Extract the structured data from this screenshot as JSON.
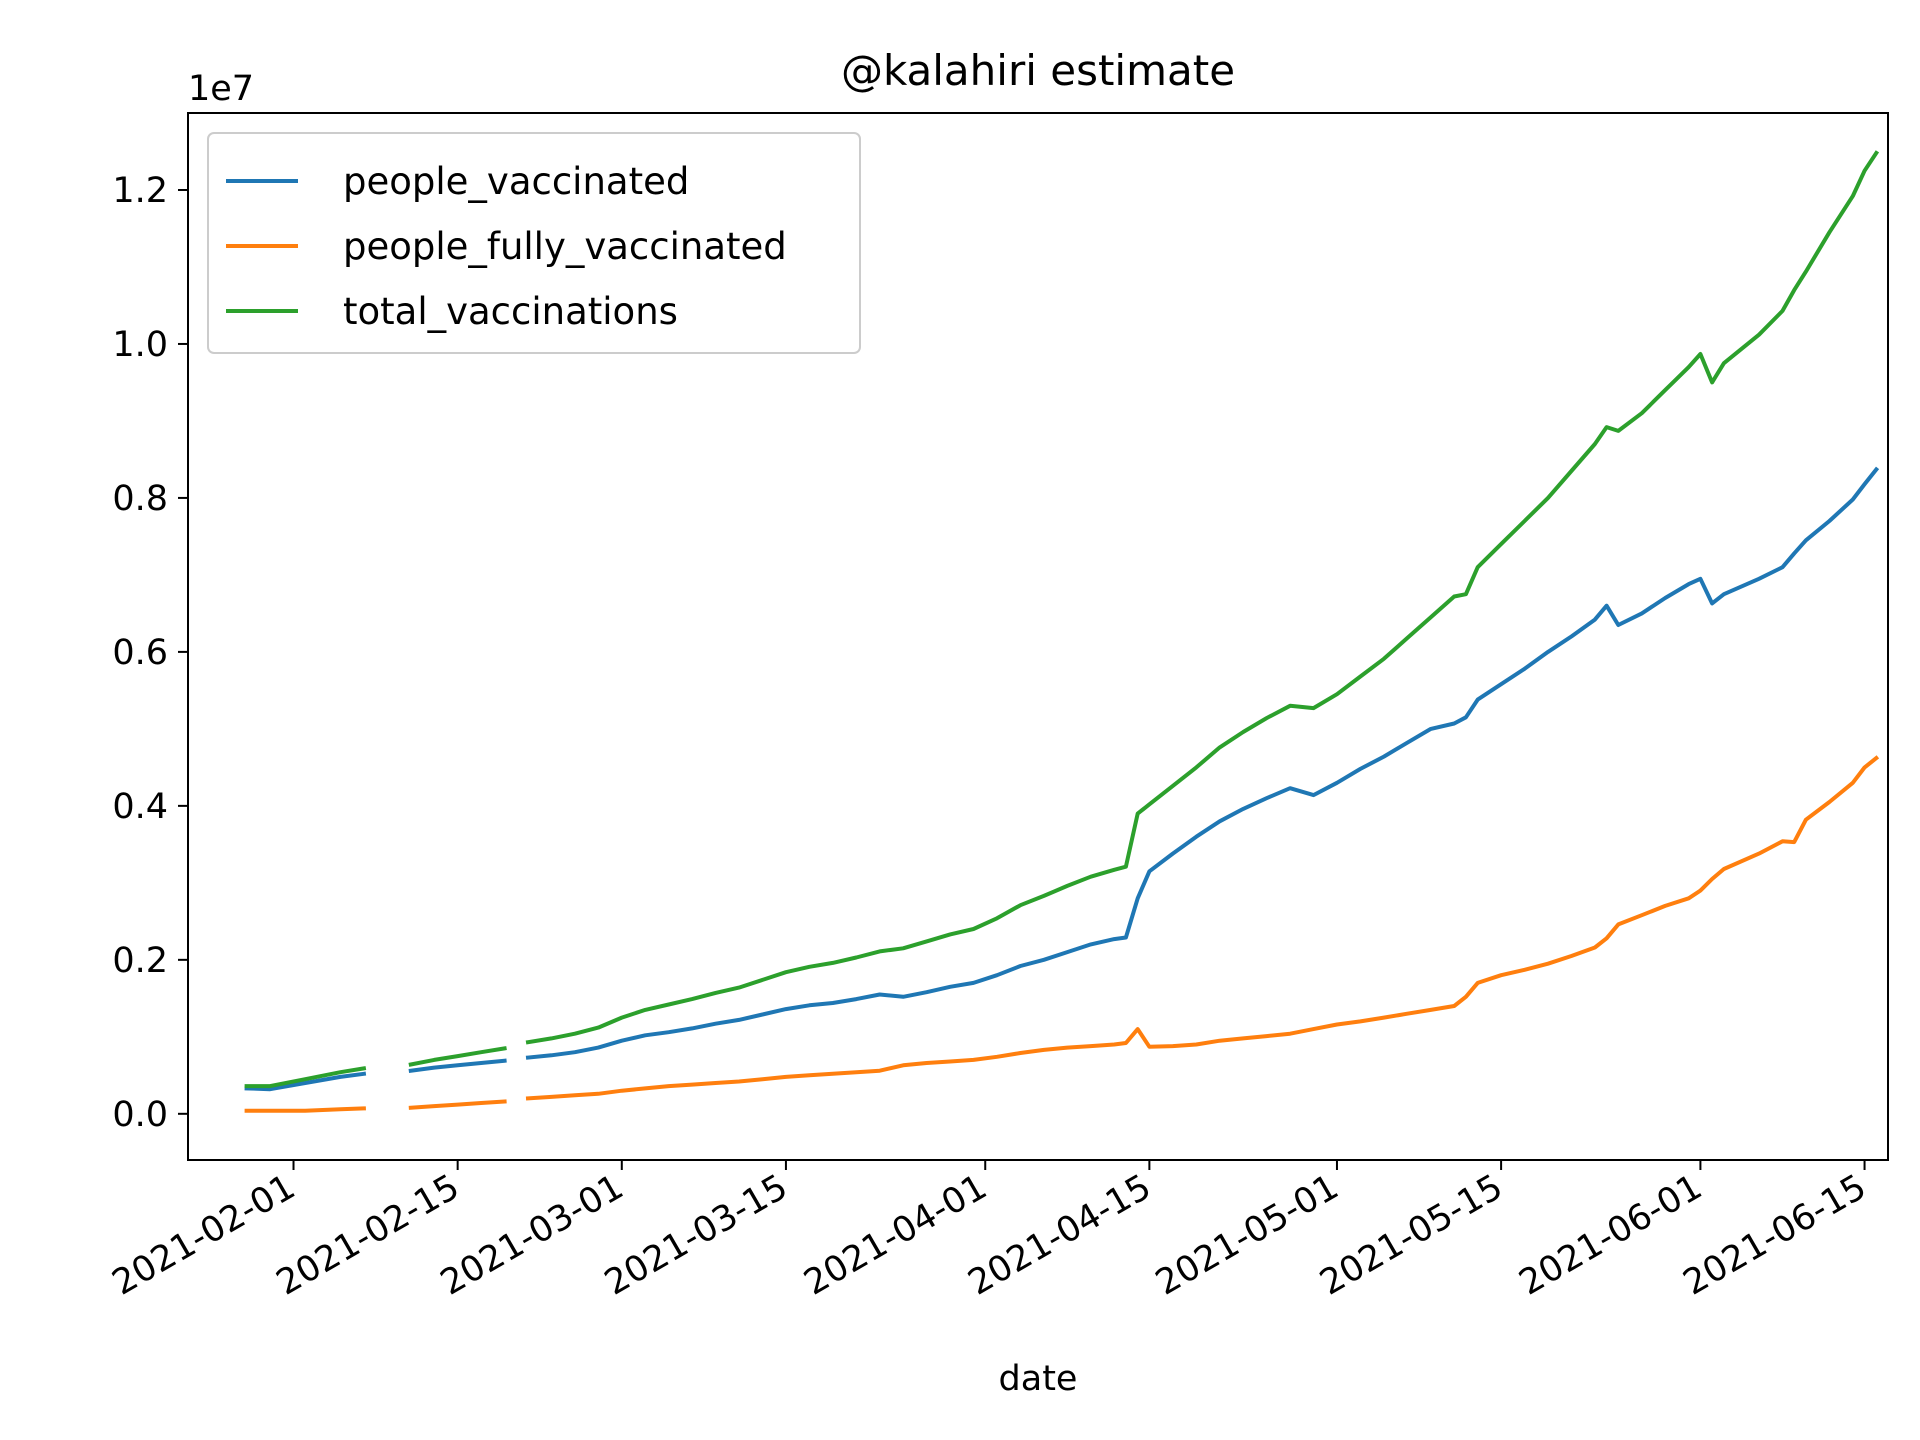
{
  "chart_data": {
    "type": "line",
    "title": "@kalahiri estimate",
    "xlabel": "date",
    "ylabel": "",
    "y_offset_label": "1e7",
    "y_scale_factor": 10000000,
    "xlim": [
      "2021-01-23",
      "2021-06-17"
    ],
    "ylim": [
      -600000,
      13000000
    ],
    "x_ticks": [
      "2021-02-01",
      "2021-02-15",
      "2021-03-01",
      "2021-03-15",
      "2021-04-01",
      "2021-04-15",
      "2021-05-01",
      "2021-05-15",
      "2021-06-01",
      "2021-06-15"
    ],
    "y_ticks": [
      0,
      2000000,
      4000000,
      6000000,
      8000000,
      10000000,
      12000000
    ],
    "y_tick_labels": [
      "0.0",
      "0.2",
      "0.4",
      "0.6",
      "0.8",
      "1.0",
      "1.2"
    ],
    "legend_position": "upper-left",
    "grid": false,
    "series": [
      {
        "name": "people_vaccinated",
        "color": "#1f77b4",
        "points": [
          [
            "2021-01-28",
            330000
          ],
          [
            "2021-01-30",
            320000
          ],
          [
            "2021-02-02",
            400000
          ],
          [
            "2021-02-05",
            480000
          ],
          [
            "2021-02-07",
            520000
          ],
          null,
          [
            "2021-02-11",
            560000
          ],
          [
            "2021-02-13",
            600000
          ],
          [
            "2021-02-15",
            630000
          ],
          [
            "2021-02-17",
            660000
          ],
          [
            "2021-02-19",
            690000
          ],
          null,
          [
            "2021-02-21",
            730000
          ],
          [
            "2021-02-23",
            760000
          ],
          [
            "2021-02-25",
            800000
          ],
          [
            "2021-02-27",
            860000
          ],
          [
            "2021-03-01",
            950000
          ],
          [
            "2021-03-03",
            1020000
          ],
          [
            "2021-03-05",
            1060000
          ],
          [
            "2021-03-07",
            1110000
          ],
          [
            "2021-03-09",
            1170000
          ],
          [
            "2021-03-11",
            1220000
          ],
          [
            "2021-03-13",
            1290000
          ],
          [
            "2021-03-15",
            1360000
          ],
          [
            "2021-03-17",
            1410000
          ],
          [
            "2021-03-19",
            1440000
          ],
          [
            "2021-03-21",
            1490000
          ],
          [
            "2021-03-23",
            1550000
          ],
          [
            "2021-03-25",
            1520000
          ],
          [
            "2021-03-27",
            1580000
          ],
          [
            "2021-03-29",
            1650000
          ],
          [
            "2021-03-31",
            1700000
          ],
          [
            "2021-04-02",
            1800000
          ],
          [
            "2021-04-04",
            1920000
          ],
          [
            "2021-04-06",
            2000000
          ],
          [
            "2021-04-08",
            2100000
          ],
          [
            "2021-04-10",
            2200000
          ],
          [
            "2021-04-12",
            2270000
          ],
          [
            "2021-04-13",
            2290000
          ],
          [
            "2021-04-14",
            2800000
          ],
          [
            "2021-04-15",
            3150000
          ],
          [
            "2021-04-17",
            3380000
          ],
          [
            "2021-04-19",
            3600000
          ],
          [
            "2021-04-21",
            3800000
          ],
          [
            "2021-04-23",
            3960000
          ],
          [
            "2021-04-25",
            4100000
          ],
          [
            "2021-04-27",
            4230000
          ],
          [
            "2021-04-29",
            4140000
          ],
          [
            "2021-05-01",
            4300000
          ],
          [
            "2021-05-03",
            4480000
          ],
          [
            "2021-05-05",
            4640000
          ],
          [
            "2021-05-07",
            4820000
          ],
          [
            "2021-05-09",
            5000000
          ],
          [
            "2021-05-11",
            5070000
          ],
          [
            "2021-05-12",
            5150000
          ],
          [
            "2021-05-13",
            5380000
          ],
          [
            "2021-05-15",
            5580000
          ],
          [
            "2021-05-17",
            5780000
          ],
          [
            "2021-05-19",
            6000000
          ],
          [
            "2021-05-21",
            6200000
          ],
          [
            "2021-05-23",
            6420000
          ],
          [
            "2021-05-24",
            6600000
          ],
          [
            "2021-05-25",
            6350000
          ],
          [
            "2021-05-27",
            6500000
          ],
          [
            "2021-05-29",
            6700000
          ],
          [
            "2021-05-31",
            6880000
          ],
          [
            "2021-06-01",
            6950000
          ],
          [
            "2021-06-02",
            6630000
          ],
          [
            "2021-06-03",
            6750000
          ],
          [
            "2021-06-06",
            6950000
          ],
          [
            "2021-06-08",
            7100000
          ],
          [
            "2021-06-09",
            7280000
          ],
          [
            "2021-06-10",
            7450000
          ],
          [
            "2021-06-12",
            7700000
          ],
          [
            "2021-06-14",
            7980000
          ],
          [
            "2021-06-15",
            8180000
          ],
          [
            "2021-06-16",
            8370000
          ]
        ]
      },
      {
        "name": "people_fully_vaccinated",
        "color": "#ff7f0e",
        "points": [
          [
            "2021-01-28",
            40000
          ],
          [
            "2021-01-30",
            40000
          ],
          [
            "2021-02-02",
            40000
          ],
          [
            "2021-02-05",
            60000
          ],
          [
            "2021-02-07",
            70000
          ],
          null,
          [
            "2021-02-11",
            80000
          ],
          [
            "2021-02-13",
            100000
          ],
          [
            "2021-02-15",
            120000
          ],
          [
            "2021-02-17",
            140000
          ],
          [
            "2021-02-19",
            160000
          ],
          null,
          [
            "2021-02-21",
            200000
          ],
          [
            "2021-02-23",
            220000
          ],
          [
            "2021-02-25",
            240000
          ],
          [
            "2021-02-27",
            260000
          ],
          [
            "2021-03-01",
            300000
          ],
          [
            "2021-03-03",
            330000
          ],
          [
            "2021-03-05",
            360000
          ],
          [
            "2021-03-07",
            380000
          ],
          [
            "2021-03-09",
            400000
          ],
          [
            "2021-03-11",
            420000
          ],
          [
            "2021-03-13",
            450000
          ],
          [
            "2021-03-15",
            480000
          ],
          [
            "2021-03-17",
            500000
          ],
          [
            "2021-03-19",
            520000
          ],
          [
            "2021-03-21",
            540000
          ],
          [
            "2021-03-23",
            560000
          ],
          [
            "2021-03-25",
            630000
          ],
          [
            "2021-03-27",
            660000
          ],
          [
            "2021-03-29",
            680000
          ],
          [
            "2021-03-31",
            700000
          ],
          [
            "2021-04-02",
            740000
          ],
          [
            "2021-04-04",
            790000
          ],
          [
            "2021-04-06",
            830000
          ],
          [
            "2021-04-08",
            860000
          ],
          [
            "2021-04-10",
            880000
          ],
          [
            "2021-04-12",
            900000
          ],
          [
            "2021-04-13",
            920000
          ],
          [
            "2021-04-14",
            1100000
          ],
          [
            "2021-04-15",
            870000
          ],
          [
            "2021-04-17",
            880000
          ],
          [
            "2021-04-19",
            900000
          ],
          [
            "2021-04-21",
            950000
          ],
          [
            "2021-04-23",
            980000
          ],
          [
            "2021-04-25",
            1010000
          ],
          [
            "2021-04-27",
            1040000
          ],
          [
            "2021-04-29",
            1100000
          ],
          [
            "2021-05-01",
            1160000
          ],
          [
            "2021-05-03",
            1200000
          ],
          [
            "2021-05-05",
            1250000
          ],
          [
            "2021-05-07",
            1300000
          ],
          [
            "2021-05-09",
            1350000
          ],
          [
            "2021-05-11",
            1400000
          ],
          [
            "2021-05-12",
            1520000
          ],
          [
            "2021-05-13",
            1700000
          ],
          [
            "2021-05-15",
            1800000
          ],
          [
            "2021-05-17",
            1870000
          ],
          [
            "2021-05-19",
            1950000
          ],
          [
            "2021-05-21",
            2050000
          ],
          [
            "2021-05-23",
            2160000
          ],
          [
            "2021-05-24",
            2280000
          ],
          [
            "2021-05-25",
            2460000
          ],
          [
            "2021-05-27",
            2580000
          ],
          [
            "2021-05-29",
            2700000
          ],
          [
            "2021-05-31",
            2800000
          ],
          [
            "2021-06-01",
            2900000
          ],
          [
            "2021-06-02",
            3050000
          ],
          [
            "2021-06-03",
            3180000
          ],
          [
            "2021-06-06",
            3380000
          ],
          [
            "2021-06-08",
            3540000
          ],
          [
            "2021-06-09",
            3530000
          ],
          [
            "2021-06-10",
            3820000
          ],
          [
            "2021-06-12",
            4050000
          ],
          [
            "2021-06-14",
            4300000
          ],
          [
            "2021-06-15",
            4500000
          ],
          [
            "2021-06-16",
            4620000
          ]
        ]
      },
      {
        "name": "total_vaccinations",
        "color": "#2ca02c",
        "points": [
          [
            "2021-01-28",
            360000
          ],
          [
            "2021-01-30",
            360000
          ],
          [
            "2021-02-02",
            450000
          ],
          [
            "2021-02-05",
            540000
          ],
          [
            "2021-02-07",
            590000
          ],
          null,
          [
            "2021-02-11",
            640000
          ],
          [
            "2021-02-13",
            700000
          ],
          [
            "2021-02-15",
            750000
          ],
          [
            "2021-02-17",
            800000
          ],
          [
            "2021-02-19",
            850000
          ],
          null,
          [
            "2021-02-21",
            930000
          ],
          [
            "2021-02-23",
            980000
          ],
          [
            "2021-02-25",
            1040000
          ],
          [
            "2021-02-27",
            1120000
          ],
          [
            "2021-03-01",
            1250000
          ],
          [
            "2021-03-03",
            1350000
          ],
          [
            "2021-03-05",
            1420000
          ],
          [
            "2021-03-07",
            1490000
          ],
          [
            "2021-03-09",
            1570000
          ],
          [
            "2021-03-11",
            1640000
          ],
          [
            "2021-03-13",
            1740000
          ],
          [
            "2021-03-15",
            1840000
          ],
          [
            "2021-03-17",
            1910000
          ],
          [
            "2021-03-19",
            1960000
          ],
          [
            "2021-03-21",
            2030000
          ],
          [
            "2021-03-23",
            2110000
          ],
          [
            "2021-03-25",
            2150000
          ],
          [
            "2021-03-27",
            2240000
          ],
          [
            "2021-03-29",
            2330000
          ],
          [
            "2021-03-31",
            2400000
          ],
          [
            "2021-04-02",
            2540000
          ],
          [
            "2021-04-04",
            2710000
          ],
          [
            "2021-04-06",
            2830000
          ],
          [
            "2021-04-08",
            2960000
          ],
          [
            "2021-04-10",
            3080000
          ],
          [
            "2021-04-12",
            3170000
          ],
          [
            "2021-04-13",
            3210000
          ],
          [
            "2021-04-14",
            3900000
          ],
          [
            "2021-04-15",
            4020000
          ],
          [
            "2021-04-17",
            4260000
          ],
          [
            "2021-04-19",
            4500000
          ],
          [
            "2021-04-21",
            4760000
          ],
          [
            "2021-04-23",
            4960000
          ],
          [
            "2021-04-25",
            5140000
          ],
          [
            "2021-04-27",
            5300000
          ],
          [
            "2021-04-29",
            5270000
          ],
          [
            "2021-05-01",
            5450000
          ],
          [
            "2021-05-03",
            5680000
          ],
          [
            "2021-05-05",
            5910000
          ],
          [
            "2021-05-07",
            6180000
          ],
          [
            "2021-05-09",
            6450000
          ],
          [
            "2021-05-11",
            6720000
          ],
          [
            "2021-05-12",
            6750000
          ],
          [
            "2021-05-13",
            7100000
          ],
          [
            "2021-05-15",
            7400000
          ],
          [
            "2021-05-17",
            7700000
          ],
          [
            "2021-05-19",
            8000000
          ],
          [
            "2021-05-21",
            8350000
          ],
          [
            "2021-05-23",
            8700000
          ],
          [
            "2021-05-24",
            8920000
          ],
          [
            "2021-05-25",
            8870000
          ],
          [
            "2021-05-27",
            9100000
          ],
          [
            "2021-05-29",
            9400000
          ],
          [
            "2021-05-31",
            9700000
          ],
          [
            "2021-06-01",
            9870000
          ],
          [
            "2021-06-02",
            9500000
          ],
          [
            "2021-06-03",
            9750000
          ],
          [
            "2021-06-06",
            10120000
          ],
          [
            "2021-06-08",
            10430000
          ],
          [
            "2021-06-09",
            10700000
          ],
          [
            "2021-06-10",
            10940000
          ],
          [
            "2021-06-12",
            11450000
          ],
          [
            "2021-06-14",
            11920000
          ],
          [
            "2021-06-15",
            12250000
          ],
          [
            "2021-06-16",
            12480000
          ]
        ]
      }
    ]
  }
}
